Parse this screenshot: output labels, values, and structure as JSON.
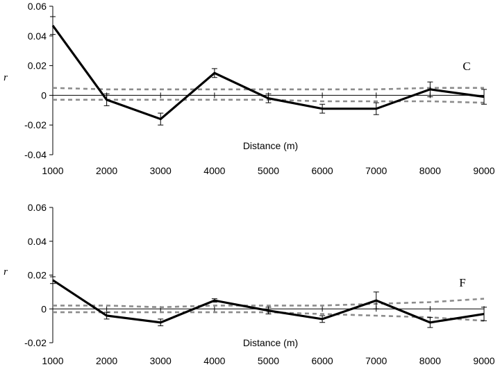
{
  "chart_data": [
    {
      "type": "line",
      "panel_label": "C",
      "xlabel": "Distance (m)",
      "ylabel": "r",
      "x": [
        1000,
        2000,
        3000,
        4000,
        5000,
        6000,
        7000,
        8000,
        9000
      ],
      "x_tick_labels": [
        "1000",
        "2000",
        "3000",
        "4000",
        "5000",
        "6000",
        "7000",
        "8000",
        "9000"
      ],
      "ylim": [
        -0.04,
        0.06
      ],
      "y_tick_labels": [
        "-0.04",
        "-0.02",
        "0",
        "0.02",
        "0.04",
        "0.06"
      ],
      "y_ticks": [
        -0.04,
        -0.02,
        0,
        0.02,
        0.04,
        0.06
      ],
      "series": [
        {
          "role": "observed",
          "style": "solid-thick",
          "color": "#000000",
          "values": [
            0.047,
            -0.003,
            -0.016,
            0.015,
            -0.002,
            -0.009,
            -0.009,
            0.004,
            -0.001
          ],
          "error": [
            0.006,
            0.004,
            0.004,
            0.003,
            0.003,
            0.003,
            0.004,
            0.005,
            0.005
          ]
        },
        {
          "role": "upper-confidence",
          "style": "dashed",
          "color": "#8c8c8c",
          "values": [
            0.005,
            0.004,
            0.004,
            0.004,
            0.004,
            0.004,
            0.004,
            0.005,
            0.005
          ]
        },
        {
          "role": "lower-confidence",
          "style": "dashed",
          "color": "#8c8c8c",
          "values": [
            -0.003,
            -0.003,
            -0.003,
            -0.003,
            -0.003,
            -0.004,
            -0.004,
            -0.004,
            -0.005
          ]
        }
      ],
      "grid": false
    },
    {
      "type": "line",
      "panel_label": "F",
      "xlabel": "Distance (m)",
      "ylabel": "r",
      "x": [
        1000,
        2000,
        3000,
        4000,
        5000,
        6000,
        7000,
        8000,
        9000
      ],
      "x_tick_labels": [
        "1000",
        "2000",
        "3000",
        "4000",
        "5000",
        "6000",
        "7000",
        "8000",
        "9000"
      ],
      "ylim": [
        -0.02,
        0.06
      ],
      "y_tick_labels": [
        "-0.02",
        "0",
        "0.02",
        "0.04",
        "0.06"
      ],
      "y_ticks": [
        -0.02,
        0,
        0.02,
        0.04,
        0.06
      ],
      "series": [
        {
          "role": "observed",
          "style": "solid-thick",
          "color": "#000000",
          "values": [
            0.017,
            -0.004,
            -0.008,
            0.005,
            -0.001,
            -0.006,
            0.005,
            -0.008,
            -0.003
          ],
          "error": [
            0.002,
            0.002,
            0.002,
            0.001,
            0.002,
            0.002,
            0.005,
            0.003,
            0.004
          ]
        },
        {
          "role": "upper-confidence",
          "style": "dashed",
          "color": "#8c8c8c",
          "values": [
            0.002,
            0.002,
            0.001,
            0.002,
            0.002,
            0.002,
            0.003,
            0.004,
            0.006
          ]
        },
        {
          "role": "lower-confidence",
          "style": "dashed",
          "color": "#8c8c8c",
          "values": [
            -0.002,
            -0.002,
            -0.002,
            -0.002,
            -0.002,
            -0.003,
            -0.004,
            -0.005,
            -0.007
          ]
        }
      ],
      "grid": false
    }
  ]
}
